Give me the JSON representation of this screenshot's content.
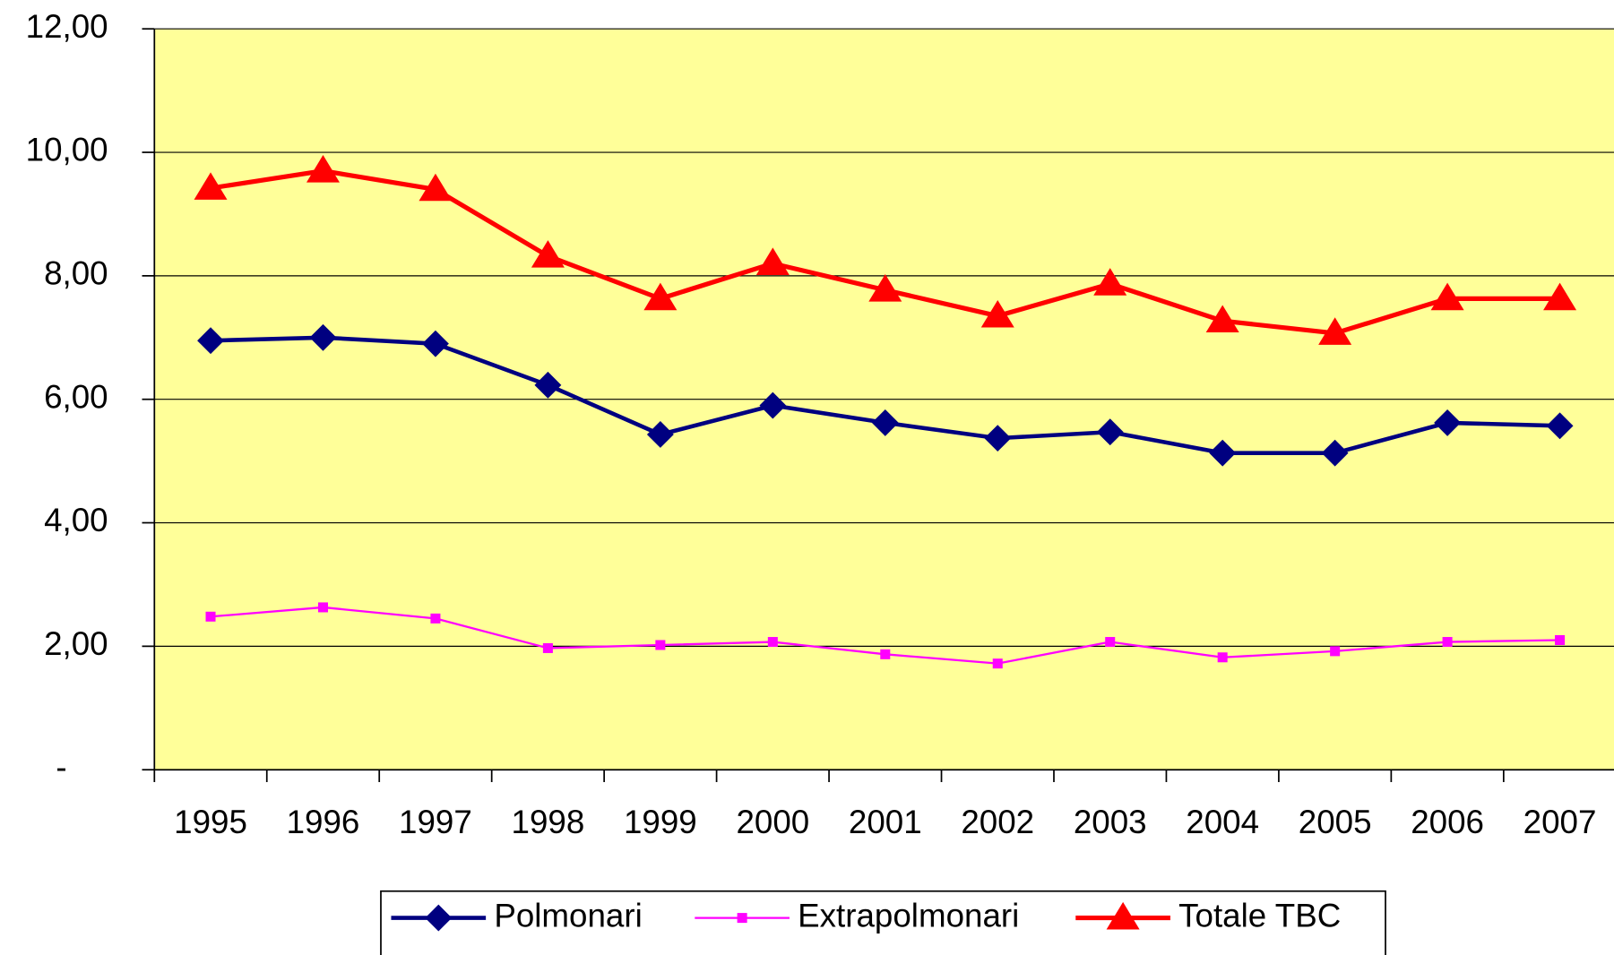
{
  "chart_data": {
    "type": "line",
    "categories": [
      "1995",
      "1996",
      "1997",
      "1998",
      "1999",
      "2000",
      "2001",
      "2002",
      "2003",
      "2004",
      "2005",
      "2006",
      "2007"
    ],
    "series": [
      {
        "name": "Polmonari",
        "color": "#000080",
        "marker": "diamond",
        "values": [
          6.95,
          7.0,
          6.9,
          6.23,
          5.43,
          5.9,
          5.62,
          5.37,
          5.47,
          5.13,
          5.13,
          5.62,
          5.57
        ]
      },
      {
        "name": "Extrapolmonari",
        "color": "#ff00ff",
        "marker": "square",
        "values": [
          2.48,
          2.63,
          2.45,
          1.97,
          2.02,
          2.07,
          1.87,
          1.72,
          2.07,
          1.82,
          1.92,
          2.07,
          2.1
        ]
      },
      {
        "name": "Totale TBC",
        "color": "#ff0000",
        "marker": "triangle",
        "values": [
          9.42,
          9.7,
          9.4,
          8.32,
          7.63,
          8.2,
          7.77,
          7.35,
          7.87,
          7.27,
          7.07,
          7.63,
          7.63
        ]
      }
    ],
    "ylim": [
      0,
      12
    ],
    "yticks": [
      {
        "value": 0,
        "label": "-"
      },
      {
        "value": 2,
        "label": "2,00"
      },
      {
        "value": 4,
        "label": "4,00"
      },
      {
        "value": 6,
        "label": "6,00"
      },
      {
        "value": 8,
        "label": "8,00"
      },
      {
        "value": 10,
        "label": "10,00"
      },
      {
        "value": 12,
        "label": "12,00"
      }
    ],
    "grid": true,
    "legend": "bottom",
    "background": "#ffff99"
  }
}
